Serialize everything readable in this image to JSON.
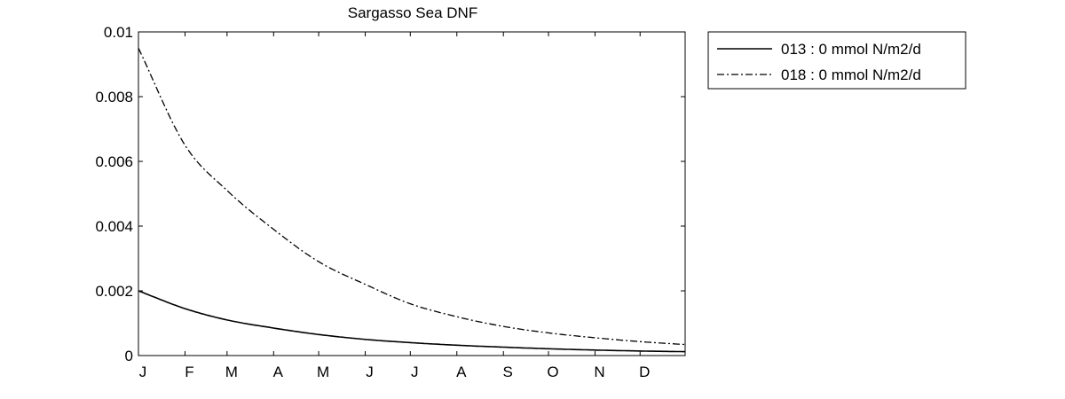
{
  "chart_data": {
    "type": "line",
    "title": "Sargasso Sea DNF",
    "xlabel": "",
    "ylabel": "",
    "x_tick_labels": [
      "J",
      "F",
      "M",
      "A",
      "M",
      "J",
      "J",
      "A",
      "S",
      "O",
      "N",
      "D"
    ],
    "x_tick_days": [
      1,
      32,
      60,
      91,
      121,
      152,
      182,
      213,
      244,
      274,
      305,
      335
    ],
    "xlim": [
      1,
      365
    ],
    "ylim": [
      0,
      0.01
    ],
    "y_ticks": [
      0,
      0.002,
      0.004,
      0.006,
      0.008,
      0.01
    ],
    "y_tick_labels": [
      "0",
      "0.002",
      "0.004",
      "0.006",
      "0.008",
      "0.01"
    ],
    "grid": false,
    "legend_position": "outside-top-right",
    "series": [
      {
        "name": "013 : 0 mmol N/m2/d",
        "line_style": "solid",
        "color": "#000000",
        "x": [
          1,
          32,
          60,
          91,
          121,
          152,
          182,
          213,
          244,
          274,
          305,
          335,
          365
        ],
        "values": [
          0.002,
          0.00145,
          0.0011,
          0.00085,
          0.00065,
          0.0005,
          0.0004,
          0.00032,
          0.00026,
          0.00021,
          0.00017,
          0.00014,
          0.00012
        ]
      },
      {
        "name": "018 : 0 mmol N/m2/d",
        "line_style": "dash-dot",
        "color": "#000000",
        "x": [
          1,
          32,
          60,
          91,
          121,
          152,
          182,
          213,
          244,
          274,
          305,
          335,
          365
        ],
        "values": [
          0.0095,
          0.0065,
          0.0051,
          0.0039,
          0.0029,
          0.0022,
          0.0016,
          0.0012,
          0.0009,
          0.0007,
          0.00055,
          0.00043,
          0.00034
        ]
      }
    ]
  }
}
